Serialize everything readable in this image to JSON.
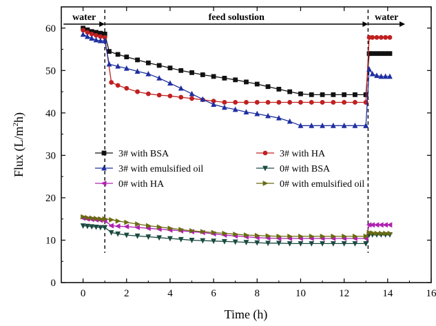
{
  "chart_data": {
    "type": "line",
    "title": "",
    "xlabel": "Time (h)",
    "ylabel_main": "Flux (L/m",
    "ylabel_sup": "2",
    "ylabel_tail": "h)",
    "xlim": [
      -1,
      16
    ],
    "ylim": [
      0,
      65
    ],
    "xticks": [
      0,
      2,
      4,
      6,
      8,
      10,
      12,
      14,
      16
    ],
    "yticks": [
      0,
      10,
      20,
      30,
      40,
      50,
      60
    ],
    "grid": false,
    "legend_position": "center-left",
    "phase_dividers": [
      1.0,
      13.1
    ],
    "phase_labels": [
      {
        "text": "water",
        "x_start": -0.9,
        "x_end": 1.0
      },
      {
        "text": "feed solustion",
        "x_start": 1.0,
        "x_end": 13.1
      },
      {
        "text": "water",
        "x_start": 13.1,
        "x_end": 14.8
      }
    ],
    "series": [
      {
        "name": "3# with BSA",
        "color": "#111111",
        "marker": "square",
        "segments": [
          {
            "x": [
              0,
              0.2,
              0.4,
              0.6,
              0.8,
              1.0
            ],
            "y": [
              60,
              59.6,
              59.2,
              59,
              58.8,
              58.6
            ]
          },
          {
            "x": [
              1.0,
              1.2,
              1.6,
              2,
              2.5,
              3,
              3.5,
              4,
              4.5,
              5,
              5.5,
              6,
              6.5,
              7,
              7.5,
              8,
              8.5,
              9,
              9.5,
              10,
              10.5,
              11,
              11.5,
              12,
              12.5,
              13.0
            ],
            "y": [
              58.6,
              54.5,
              53.8,
              53.2,
              52.5,
              51.8,
              51.2,
              50.6,
              50,
              49.5,
              49,
              48.6,
              48.2,
              47.8,
              47.3,
              46.8,
              46.2,
              45.6,
              45,
              44.5,
              44.3,
              44.3,
              44.3,
              44.3,
              44.3,
              44.3
            ]
          },
          {
            "x": [
              13.0,
              13.15,
              13.3,
              13.5,
              13.7,
              13.9,
              14.1
            ],
            "y": [
              44.3,
              54,
              54,
              54,
              54,
              54,
              54
            ]
          }
        ]
      },
      {
        "name": "3# with HA",
        "color": "#c02020",
        "marker": "circle",
        "segments": [
          {
            "x": [
              0,
              0.2,
              0.4,
              0.6,
              0.8,
              1.0
            ],
            "y": [
              59.5,
              59,
              58.6,
              58.3,
              58,
              57.8
            ]
          },
          {
            "x": [
              1.0,
              1.3,
              1.6,
              2,
              2.5,
              3,
              3.5,
              4,
              4.5,
              5,
              5.5,
              6,
              6.5,
              7,
              7.5,
              8,
              8.5,
              9,
              9.5,
              10,
              10.5,
              11,
              11.5,
              12,
              12.5,
              13.0
            ],
            "y": [
              57.8,
              47.2,
              46.5,
              45.8,
              45,
              44.5,
              44.2,
              44,
              43.7,
              43.4,
              43.1,
              42.8,
              42.5,
              42.5,
              42.5,
              42.5,
              42.5,
              42.5,
              42.5,
              42.5,
              42.5,
              42.5,
              42.5,
              42.5,
              42.5,
              42.5
            ]
          },
          {
            "x": [
              13.0,
              13.15,
              13.3,
              13.5,
              13.7,
              13.9,
              14.1
            ],
            "y": [
              42.5,
              57.8,
              57.8,
              57.8,
              57.8,
              57.8,
              57.8
            ]
          }
        ]
      },
      {
        "name": "3# with emulsified oil",
        "color": "#1f2fa0",
        "marker": "triangle-up",
        "segments": [
          {
            "x": [
              0,
              0.2,
              0.4,
              0.6,
              0.8,
              1.0
            ],
            "y": [
              58.5,
              58,
              57.6,
              57.2,
              57,
              57
            ]
          },
          {
            "x": [
              1.0,
              1.2,
              1.6,
              2,
              2.5,
              3,
              3.5,
              4,
              4.5,
              5,
              5.5,
              6,
              6.5,
              7,
              7.5,
              8,
              8.5,
              9,
              9.5,
              10,
              10.5,
              11,
              11.5,
              12,
              12.5,
              13.0
            ],
            "y": [
              57,
              51.5,
              51,
              50.5,
              49.8,
              49.2,
              48.2,
              47,
              45.8,
              44.5,
              43.2,
              42,
              41.3,
              40.8,
              40.2,
              39.8,
              39.3,
              38.8,
              38,
              37,
              37,
              37,
              37,
              37,
              37,
              37
            ]
          },
          {
            "x": [
              13.0,
              13.15,
              13.3,
              13.5,
              13.7,
              13.9,
              14.1
            ],
            "y": [
              37,
              50.3,
              49.2,
              48.8,
              48.6,
              48.6,
              48.6
            ]
          }
        ]
      },
      {
        "name": "0# with BSA",
        "color": "#1a4a40",
        "marker": "triangle-down",
        "segments": [
          {
            "x": [
              0,
              0.2,
              0.4,
              0.6,
              0.8,
              1.0
            ],
            "y": [
              13.4,
              13.3,
              13.2,
              13.1,
              13,
              13
            ]
          },
          {
            "x": [
              1.0,
              1.3,
              1.6,
              2,
              2.5,
              3,
              3.5,
              4,
              4.5,
              5,
              5.5,
              6,
              6.5,
              7,
              7.5,
              8,
              8.5,
              9,
              9.5,
              10,
              10.5,
              11,
              11.5,
              12,
              12.5,
              13.0
            ],
            "y": [
              13,
              11.8,
              11.5,
              11.2,
              11,
              10.8,
              10.6,
              10.4,
              10.2,
              10,
              9.9,
              9.8,
              9.7,
              9.6,
              9.5,
              9.4,
              9.3,
              9.3,
              9.2,
              9.2,
              9.2,
              9.2,
              9.2,
              9.2,
              9.2,
              9.2
            ]
          },
          {
            "x": [
              13.0,
              13.15,
              13.3,
              13.5,
              13.7,
              13.9,
              14.1
            ],
            "y": [
              9.2,
              11.3,
              11.3,
              11.3,
              11.3,
              11.3,
              11.3
            ]
          }
        ]
      },
      {
        "name": "0# with HA",
        "color": "#b020b0",
        "marker": "triangle-left",
        "segments": [
          {
            "x": [
              0,
              0.2,
              0.4,
              0.6,
              0.8,
              1.0
            ],
            "y": [
              15.2,
              15,
              14.9,
              14.8,
              14.7,
              14.6
            ]
          },
          {
            "x": [
              1.0,
              1.3,
              1.6,
              2,
              2.5,
              3,
              3.5,
              4,
              4.5,
              5,
              5.5,
              6,
              6.5,
              7,
              7.5,
              8,
              8.5,
              9,
              9.5,
              10,
              10.5,
              11,
              11.5,
              12,
              12.5,
              13.0
            ],
            "y": [
              14.6,
              13.4,
              13.3,
              13.2,
              13,
              12.8,
              12.6,
              12.4,
              12.2,
              12,
              11.8,
              11.5,
              11.2,
              11,
              10.8,
              10.6,
              10.5,
              10.4,
              10.4,
              10.4,
              10.4,
              10.4,
              10.4,
              10.4,
              10.4,
              10.4
            ]
          },
          {
            "x": [
              13.0,
              13.15,
              13.3,
              13.5,
              13.7,
              13.9,
              14.1
            ],
            "y": [
              10.4,
              13.6,
              13.6,
              13.6,
              13.6,
              13.6,
              13.6
            ]
          }
        ]
      },
      {
        "name": "0# with emulsified oil",
        "color": "#6b6b10",
        "marker": "triangle-right",
        "segments": [
          {
            "x": [
              0,
              0.2,
              0.4,
              0.6,
              0.8,
              1.0
            ],
            "y": [
              15.5,
              15.3,
              15.2,
              15.1,
              15,
              15
            ]
          },
          {
            "x": [
              1.0,
              1.3,
              1.6,
              2,
              2.5,
              3,
              3.5,
              4,
              4.5,
              5,
              5.5,
              6,
              6.5,
              7,
              7.5,
              8,
              8.5,
              9,
              9.5,
              10,
              10.5,
              11,
              11.5,
              12,
              12.5,
              13.0
            ],
            "y": [
              15,
              14.8,
              14.5,
              14.2,
              13.8,
              13.4,
              13.1,
              12.8,
              12.5,
              12.2,
              12,
              11.8,
              11.6,
              11.4,
              11.2,
              11.1,
              11,
              10.9,
              10.9,
              10.9,
              10.9,
              10.9,
              10.9,
              10.9,
              10.9,
              10.9
            ]
          },
          {
            "x": [
              13.0,
              13.15,
              13.3,
              13.5,
              13.7,
              13.9,
              14.1
            ],
            "y": [
              10.9,
              11.8,
              11.7,
              11.6,
              11.6,
              11.6,
              11.6
            ]
          }
        ]
      }
    ]
  }
}
